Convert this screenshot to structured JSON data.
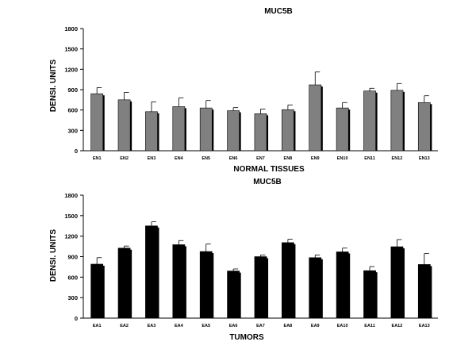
{
  "chart_data": [
    {
      "type": "bar",
      "title": "MUC5B",
      "xlabel": "NORMAL TISSUES",
      "ylabel": "DENSI. UNITS",
      "ylim": [
        0,
        1800
      ],
      "yticks": [
        0,
        300,
        600,
        900,
        1200,
        1500,
        1800
      ],
      "categories": [
        "EN1",
        "EN2",
        "EN3",
        "EN4",
        "EN5",
        "EN6",
        "EN7",
        "EN8",
        "EN9",
        "EN10",
        "EN11",
        "EN12",
        "EN13"
      ],
      "values": [
        840,
        750,
        575,
        650,
        630,
        590,
        545,
        605,
        970,
        630,
        880,
        890,
        710
      ],
      "errors": [
        90,
        110,
        145,
        130,
        110,
        45,
        70,
        70,
        190,
        80,
        40,
        100,
        100
      ],
      "bar_color": "#808080",
      "grid": false
    },
    {
      "type": "bar",
      "title": "MUC5B",
      "xlabel": "TUMORS",
      "ylabel": "DENSI. UNITS",
      "ylim": [
        0,
        1800
      ],
      "yticks": [
        0,
        300,
        600,
        900,
        1200,
        1500,
        1800
      ],
      "categories": [
        "EA1",
        "EA2",
        "EA3",
        "EA4",
        "EA5",
        "EA6",
        "EA7",
        "EA8",
        "EA9",
        "EA10",
        "EA11",
        "EA12",
        "EA13"
      ],
      "values": [
        790,
        1025,
        1350,
        1075,
        975,
        690,
        900,
        1105,
        885,
        970,
        695,
        1045,
        785
      ],
      "errors": [
        95,
        30,
        60,
        60,
        110,
        30,
        25,
        50,
        40,
        55,
        60,
        105,
        160
      ],
      "bar_color": "#000000",
      "grid": false
    }
  ]
}
